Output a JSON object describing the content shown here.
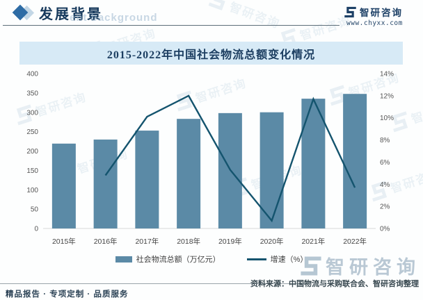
{
  "header": {
    "section_title": "发展背景",
    "section_watermark": "ent background",
    "brand_name": "智研咨询",
    "brand_url": "www.chyxx.com"
  },
  "chart_data": {
    "type": "bar",
    "subtype": "bar+line combo, dual y-axis",
    "title": "2015-2022年中国社会物流总额变化情况",
    "categories": [
      "2015年",
      "2016年",
      "2017年",
      "2018年",
      "2019年",
      "2020年",
      "2021年",
      "2022年"
    ],
    "series": [
      {
        "name": "社会物流总额（万亿元）",
        "type": "bar",
        "axis": "left",
        "color": "#5b8aa6",
        "values": [
          219.2,
          229.7,
          252.8,
          283.1,
          298.0,
          300.1,
          335.2,
          347.6
        ]
      },
      {
        "name": "增速（%）",
        "type": "line",
        "axis": "right",
        "color": "#14546e",
        "values": [
          null,
          4.8,
          10.1,
          12.0,
          5.3,
          0.7,
          11.7,
          3.7
        ]
      }
    ],
    "left_axis": {
      "range": [
        0,
        400
      ],
      "ticks": [
        0,
        50,
        100,
        150,
        200,
        250,
        300,
        350,
        400
      ]
    },
    "right_axis": {
      "range": [
        0,
        14
      ],
      "ticks_percent": [
        0,
        2,
        4,
        6,
        8,
        10,
        12,
        14
      ]
    },
    "grid": false,
    "legend_position": "bottom"
  },
  "footer": {
    "source": "资料来源：中国物流与采购联合会、智研咨询整理",
    "tagline": "精品报告 · 专项定制 · 品质服务"
  }
}
